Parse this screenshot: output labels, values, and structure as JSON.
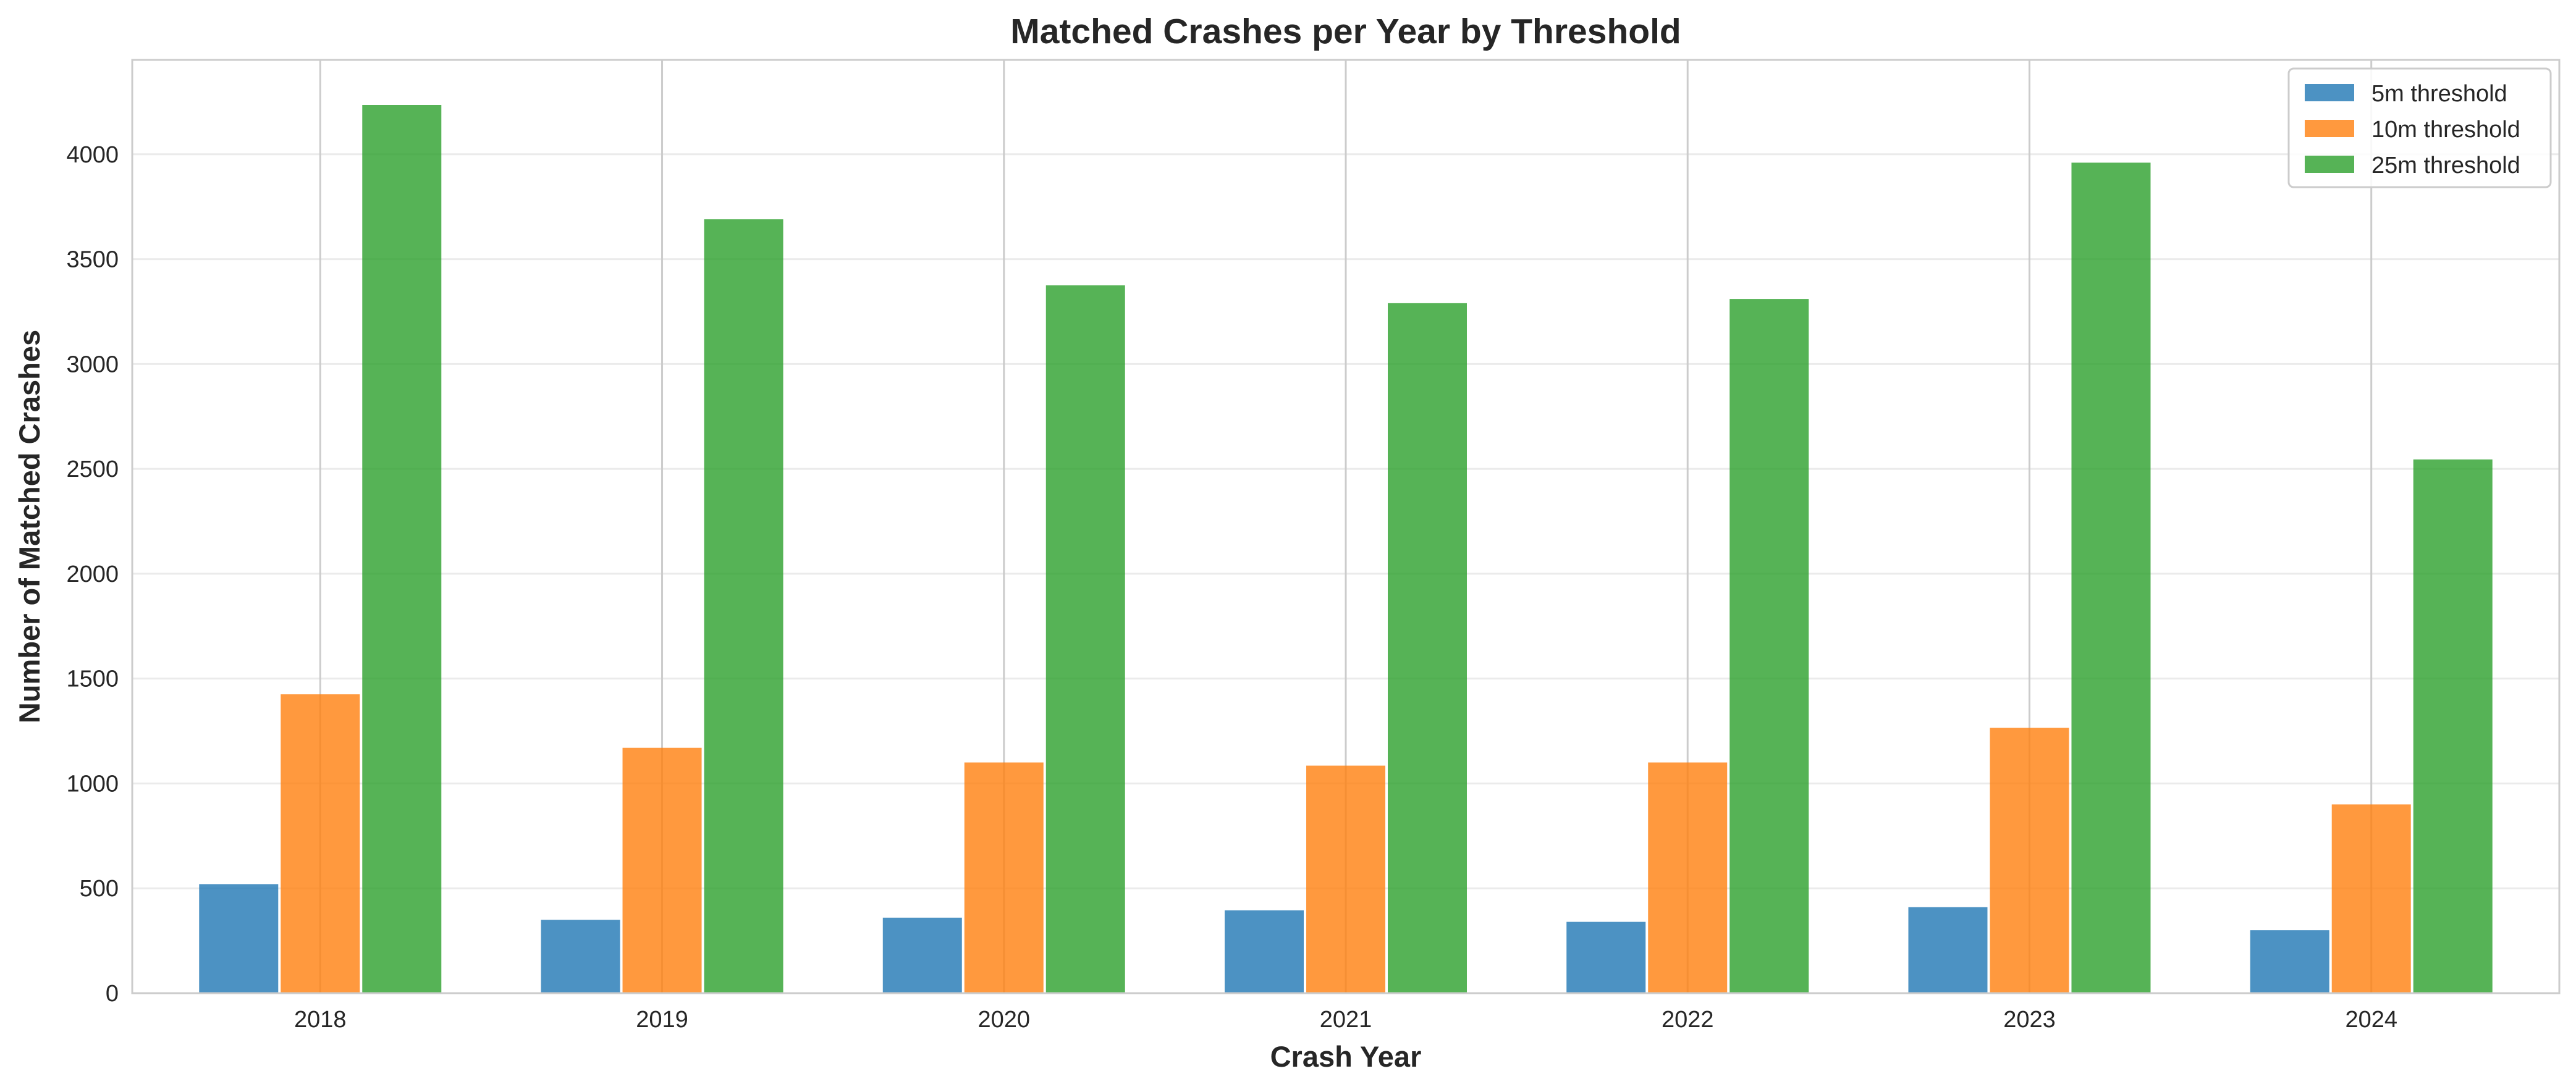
{
  "chart_data": {
    "type": "bar",
    "title": "Matched Crashes per Year by Threshold",
    "xlabel": "Crash Year",
    "ylabel": "Number of Matched Crashes",
    "categories": [
      "2018",
      "2019",
      "2020",
      "2021",
      "2022",
      "2023",
      "2024"
    ],
    "series": [
      {
        "name": "5m threshold",
        "color": "#1f77b4",
        "values": [
          520,
          350,
          360,
          395,
          340,
          410,
          300
        ]
      },
      {
        "name": "10m threshold",
        "color": "#ff7f0e",
        "values": [
          1425,
          1170,
          1100,
          1085,
          1100,
          1265,
          900
        ]
      },
      {
        "name": "25m threshold",
        "color": "#2ca02c",
        "values": [
          4235,
          3690,
          3375,
          3290,
          3310,
          3960,
          2545
        ]
      }
    ],
    "ylim": [
      0,
      4450
    ],
    "yticks": [
      0,
      500,
      1000,
      1500,
      2000,
      2500,
      3000,
      3500,
      4000
    ],
    "grid": true,
    "legend_position": "top-right"
  }
}
